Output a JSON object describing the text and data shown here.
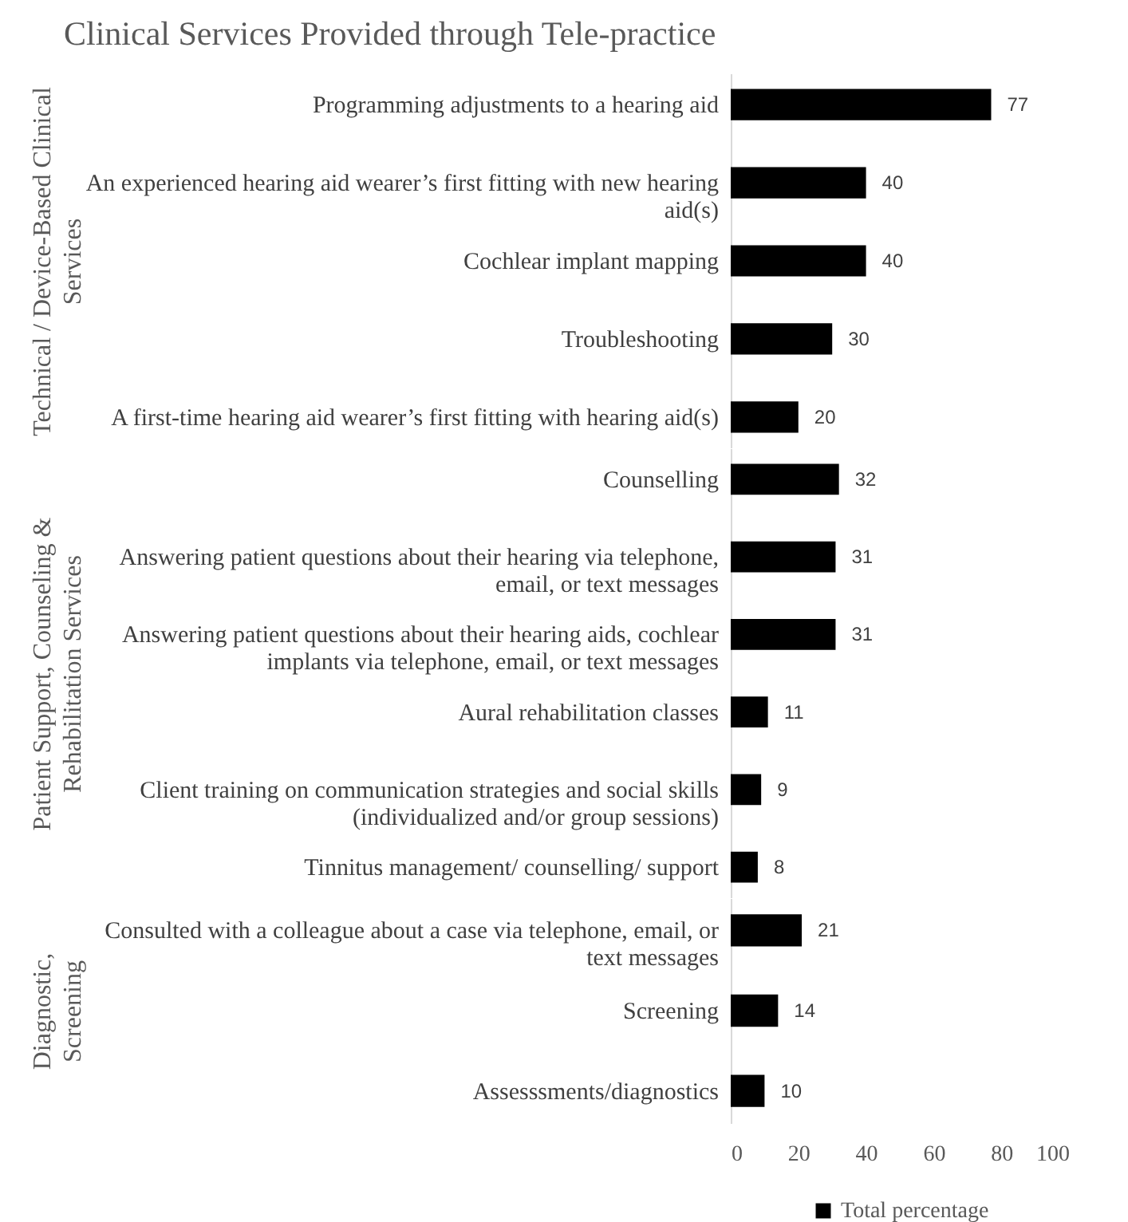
{
  "chart_data": [
    {
      "type": "bar",
      "orientation": "horizontal",
      "title": "Clinical Services Provided through Tele-practice",
      "ylabel": "Technical / Device-Based Clinical Services",
      "categories": [
        "Programming adjustments to a hearing aid",
        "An experienced hearing aid wearer’s first fitting with new hearing aid(s)",
        "Cochlear implant mapping",
        "Troubleshooting",
        "A first-time hearing aid wearer’s first fitting with hearing aid(s)"
      ],
      "values": [
        77,
        40,
        40,
        30,
        20
      ],
      "color": "#000000",
      "xlim": [
        0,
        100
      ],
      "xticks": [
        0,
        20,
        40,
        60,
        80,
        100
      ],
      "tick_labels": "y",
      "data_labels": true
    },
    {
      "type": "bar",
      "orientation": "horizontal",
      "ylabel": "Patient Support, Counseling & Rehabilitation Services",
      "categories": [
        "Counselling",
        "Answering patient questions about their hearing via telephone, email, or text messages",
        "Answering patient questions about their hearing aids, cochlear implants via telephone, email, or text messages",
        "Aural rehabilitation classes",
        "Client training on communication strategies and social skills (individualized and/or group sessions)",
        "Tinnitus management/ counselling/ support"
      ],
      "values": [
        32,
        31,
        31,
        11,
        9,
        8
      ],
      "color": "#000000",
      "xlim": [
        0,
        100
      ],
      "xticks": [
        0,
        20,
        40,
        60,
        80,
        100
      ],
      "tick_labels": "y",
      "data_labels": true
    },
    {
      "type": "bar",
      "orientation": "horizontal",
      "ylabel": "Diagnostic, Screening",
      "categories": [
        "Consulted with a colleague about a case via telephone, email, or text messages",
        "Screening",
        "Assesssments/diagnostics"
      ],
      "series": [
        {
          "name": "Total percentage",
          "color": "#000000",
          "values": [
            21,
            14,
            10
          ]
        }
      ],
      "xlim": [
        0,
        100
      ],
      "xticks": [
        0,
        20,
        40,
        60,
        80,
        100
      ],
      "data_labels": true,
      "legend": "bottom"
    }
  ]
}
